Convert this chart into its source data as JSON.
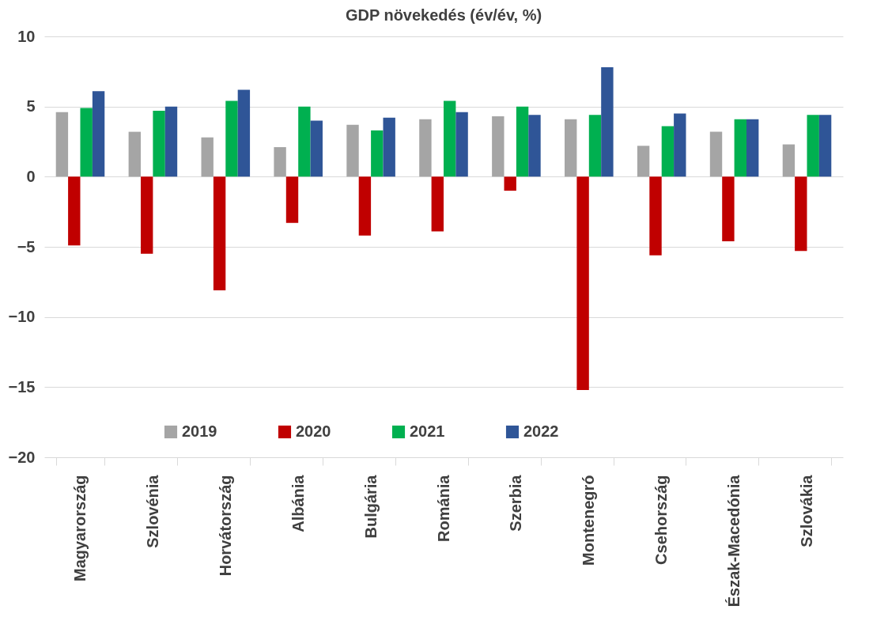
{
  "chart_data": {
    "type": "bar",
    "title": "GDP növekedés (év/év, %)",
    "categories": [
      "Magyarország",
      "Szlovénia",
      "Horvátország",
      "Albánia",
      "Bulgária",
      "Románia",
      "Szerbia",
      "Montenegró",
      "Csehország",
      "Észak-Macedónia",
      "Szlovákia"
    ],
    "series": [
      {
        "name": "2019",
        "color": "#a5a5a5",
        "values": [
          4.6,
          3.2,
          2.8,
          2.1,
          3.7,
          4.1,
          4.3,
          4.1,
          2.2,
          3.2,
          2.3
        ]
      },
      {
        "name": "2020",
        "color": "#c00000",
        "values": [
          -4.9,
          -5.5,
          -8.1,
          -3.3,
          -4.2,
          -3.9,
          -1.0,
          -15.2,
          -5.6,
          -4.6,
          -5.3
        ]
      },
      {
        "name": "2021",
        "color": "#00b050",
        "values": [
          4.9,
          4.7,
          5.4,
          5.0,
          3.3,
          5.4,
          5.0,
          4.4,
          3.6,
          4.1,
          4.4
        ]
      },
      {
        "name": "2022",
        "color": "#2f5597",
        "values": [
          6.1,
          5.0,
          6.2,
          4.0,
          4.2,
          4.6,
          4.4,
          7.8,
          4.5,
          4.1,
          4.4
        ]
      }
    ],
    "ylim": [
      -20,
      10
    ],
    "yticks": [
      -20,
      -15,
      -10,
      -5,
      0,
      5,
      10
    ],
    "grid": "y",
    "legend": "bottom"
  }
}
